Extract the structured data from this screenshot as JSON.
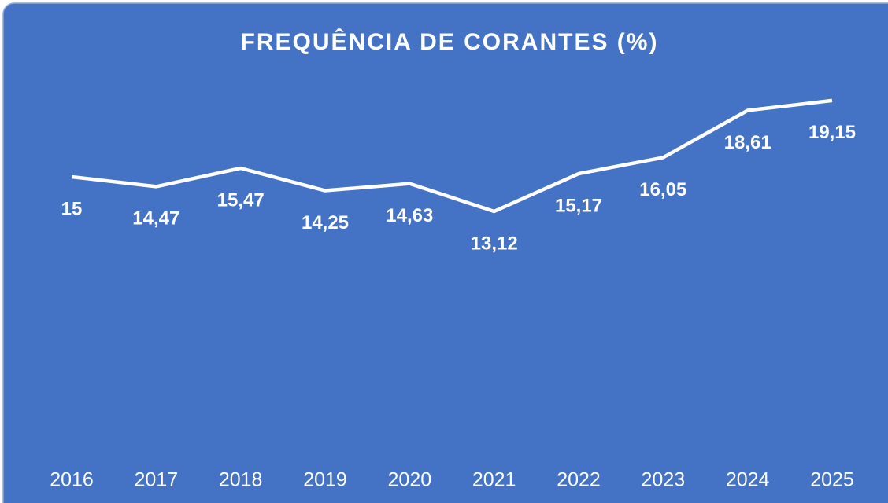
{
  "chart_data": {
    "type": "line",
    "title": "FREQUÊNCIA DE CORANTES (%)",
    "categories": [
      "2016",
      "2017",
      "2018",
      "2019",
      "2020",
      "2021",
      "2022",
      "2023",
      "2024",
      "2025"
    ],
    "values": [
      15,
      14.47,
      15.47,
      14.25,
      14.63,
      13.12,
      15.17,
      16.05,
      18.61,
      19.15
    ],
    "value_labels": [
      "15",
      "14,47",
      "15,47",
      "14,25",
      "14,63",
      "13,12",
      "15,17",
      "16,05",
      "18,61",
      "19,15"
    ],
    "color": "#ffffff",
    "ylim": [
      0,
      20
    ],
    "drop_lines": true
  }
}
